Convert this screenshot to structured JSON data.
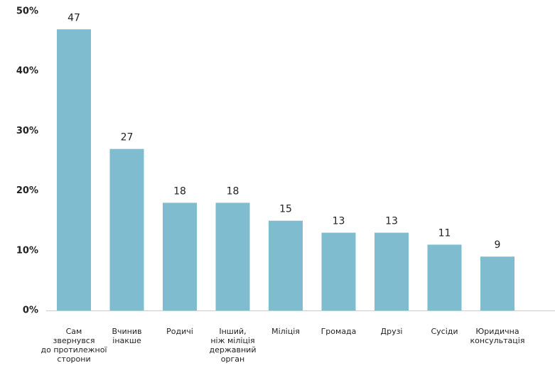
{
  "chart_data": {
    "type": "bar",
    "categories": [
      "Сам\nзвернувся\nдо протилежної\nсторони",
      "Вчинив\nінакше",
      "Родичі",
      "Інший,\nніж міліція\nдержавний орган",
      "Міліція",
      "Громада",
      "Друзі",
      "Сусіди",
      "Юридична\nконсультація"
    ],
    "values": [
      47,
      27,
      18,
      18,
      15,
      13,
      13,
      11,
      9
    ],
    "color": "#7fbccf",
    "ylim": [
      0,
      50
    ],
    "yticks": [
      {
        "value": 0,
        "label": "0%"
      },
      {
        "value": 10,
        "label": "10%"
      },
      {
        "value": 20,
        "label": "20%"
      },
      {
        "value": 30,
        "label": "30%"
      },
      {
        "value": 40,
        "label": "40%"
      },
      {
        "value": 50,
        "label": "50%"
      }
    ],
    "grid": false
  }
}
